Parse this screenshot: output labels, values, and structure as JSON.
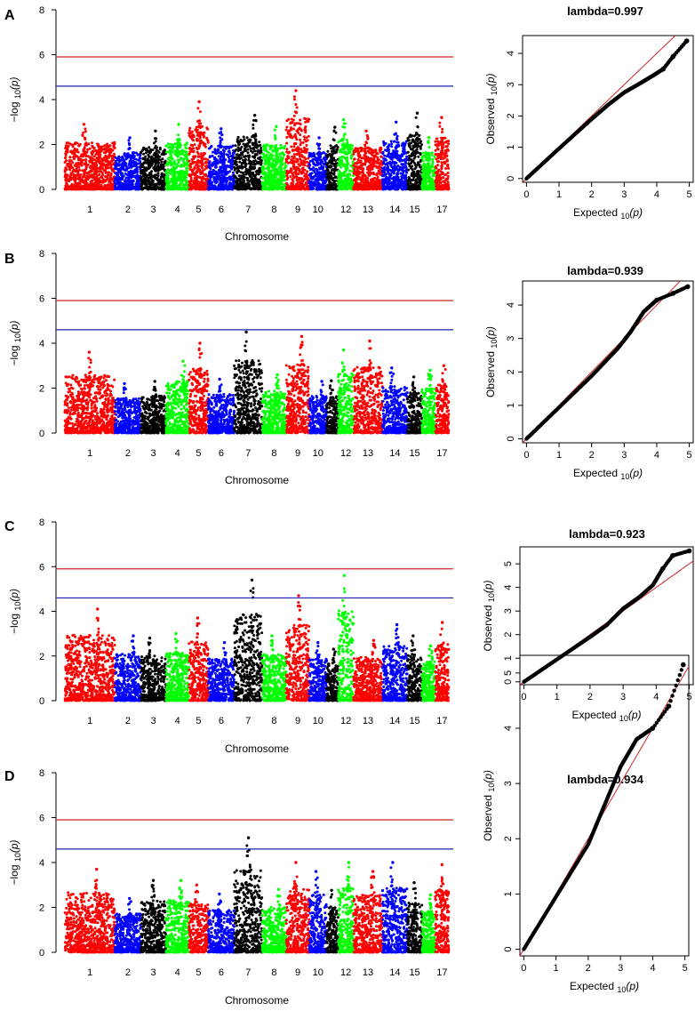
{
  "figure": {
    "chromosome_colors": [
      "#ff0000",
      "#0000ff",
      "#000000",
      "#00ff00"
    ],
    "threshold_colors": {
      "upper": "#cd2626",
      "lower": "#1f1fb0"
    },
    "qq_line_color": "#cd2626"
  },
  "chart_data": [
    {
      "panel": "A",
      "type": "scatter",
      "subtype": "manhattan",
      "xlabel": "Chromosome",
      "ylabel": "−log",
      "ylabel_sub": "10",
      "ylabel_tail": "(p)",
      "ylim": [
        0,
        8
      ],
      "yticks": [
        "0",
        "2",
        "4",
        "6",
        "8"
      ],
      "chromosome_labels": [
        "1",
        "2",
        "3",
        "4",
        "5",
        "6",
        "7",
        "8",
        "9",
        "10",
        "12",
        "13",
        "14",
        "15",
        "17"
      ],
      "thresholds": [
        5.9,
        4.6
      ],
      "peaks": [
        2.9,
        2.3,
        2.6,
        2.9,
        3.9,
        2.7,
        3.3,
        2.8,
        4.4,
        2.3,
        3.1,
        2.6,
        3.0,
        3.4,
        3.2
      ]
    },
    {
      "panel": "A",
      "type": "scatter",
      "subtype": "qq",
      "title": "lambda=0.997",
      "xlabel": "Expected",
      "ylabel": "Observed",
      "axis_sub": "10",
      "axis_tail": "(p)",
      "xlim": [
        0,
        5
      ],
      "ylim": [
        0,
        4.45
      ],
      "xticks": [
        "0",
        "1",
        "2",
        "3",
        "4",
        "5"
      ],
      "yticks": [
        "0",
        "1",
        "2",
        "3",
        "4"
      ],
      "points": [
        [
          0,
          0
        ],
        [
          1,
          0.96
        ],
        [
          2,
          1.9
        ],
        [
          2.5,
          2.35
        ],
        [
          3,
          2.75
        ],
        [
          3.5,
          3.05
        ],
        [
          3.9,
          3.3
        ],
        [
          4.2,
          3.5
        ],
        [
          4.5,
          3.9
        ],
        [
          4.92,
          4.4
        ]
      ]
    },
    {
      "panel": "B",
      "type": "scatter",
      "subtype": "manhattan",
      "xlabel": "Chromosome",
      "ylabel": "−log",
      "ylabel_sub": "10",
      "ylabel_tail": "(p)",
      "ylim": [
        0,
        8
      ],
      "yticks": [
        "0",
        "2",
        "4",
        "6",
        "8"
      ],
      "chromosome_labels": [
        "1",
        "2",
        "3",
        "4",
        "5",
        "6",
        "7",
        "8",
        "9",
        "10",
        "12",
        "13",
        "14",
        "15",
        "17"
      ],
      "thresholds": [
        5.9,
        4.6
      ],
      "peaks": [
        3.6,
        2.2,
        2.3,
        3.2,
        4.0,
        2.4,
        4.5,
        2.6,
        4.3,
        2.3,
        3.7,
        4.1,
        2.9,
        2.5,
        3.0
      ]
    },
    {
      "panel": "B",
      "type": "scatter",
      "subtype": "qq",
      "title": "lambda=0.939",
      "xlabel": "Expected",
      "ylabel": "Observed",
      "axis_sub": "10",
      "axis_tail": "(p)",
      "xlim": [
        0,
        5
      ],
      "ylim": [
        0,
        4.6
      ],
      "xticks": [
        "0",
        "1",
        "2",
        "3",
        "4",
        "5"
      ],
      "yticks": [
        "0",
        "1",
        "2",
        "3",
        "4"
      ],
      "points": [
        [
          0,
          0
        ],
        [
          1,
          0.94
        ],
        [
          2,
          1.88
        ],
        [
          2.8,
          2.7
        ],
        [
          3.2,
          3.2
        ],
        [
          3.6,
          3.8
        ],
        [
          4.0,
          4.15
        ],
        [
          4.5,
          4.35
        ],
        [
          4.95,
          4.55
        ]
      ]
    },
    {
      "panel": "C",
      "type": "scatter",
      "subtype": "manhattan",
      "xlabel": "Chromosome",
      "ylabel": "−log",
      "ylabel_sub": "10",
      "ylabel_tail": "(p)",
      "ylim": [
        0,
        8
      ],
      "yticks": [
        "0",
        "2",
        "4",
        "6",
        "8"
      ],
      "chromosome_labels": [
        "1",
        "2",
        "3",
        "4",
        "5",
        "6",
        "7",
        "8",
        "9",
        "10",
        "12",
        "13",
        "14",
        "15",
        "17"
      ],
      "thresholds": [
        5.9,
        4.6
      ],
      "peaks": [
        4.1,
        2.9,
        2.8,
        3.0,
        3.7,
        2.6,
        5.4,
        2.9,
        4.7,
        2.6,
        5.6,
        2.7,
        3.4,
        2.9,
        3.5
      ]
    },
    {
      "panel": "C",
      "type": "scatter",
      "subtype": "qq",
      "title": "lambda=0.923",
      "xlabel": "Expected",
      "ylabel": "Observed",
      "axis_sub": "10",
      "axis_tail": "(p)",
      "xlim": [
        0,
        5
      ],
      "ylim": [
        0,
        5.6
      ],
      "xticks": [
        "0",
        "1",
        "2",
        "3",
        "4",
        "5"
      ],
      "yticks": [
        "0",
        "1",
        "2",
        "3",
        "4",
        "5"
      ],
      "points": [
        [
          0,
          0
        ],
        [
          1,
          0.95
        ],
        [
          2,
          1.9
        ],
        [
          2.5,
          2.4
        ],
        [
          3,
          3.1
        ],
        [
          3.5,
          3.6
        ],
        [
          3.9,
          4.1
        ],
        [
          4.2,
          4.8
        ],
        [
          4.5,
          5.35
        ],
        [
          5.0,
          5.55
        ]
      ]
    },
    {
      "panel": "D",
      "type": "scatter",
      "subtype": "manhattan",
      "xlabel": "Chromosome",
      "ylabel": "−log",
      "ylabel_sub": "10",
      "ylabel_tail": "(p)",
      "ylim": [
        0,
        8
      ],
      "yticks": [
        "0",
        "2",
        "4",
        "6",
        "8"
      ],
      "chromosome_labels": [
        "1",
        "2",
        "3",
        "4",
        "5",
        "6",
        "7",
        "8",
        "9",
        "10",
        "12",
        "13",
        "14",
        "15",
        "17"
      ],
      "thresholds": [
        5.9,
        4.6
      ],
      "peaks": [
        3.7,
        2.4,
        3.2,
        3.2,
        3.0,
        2.6,
        5.1,
        2.8,
        4.0,
        3.6,
        4.0,
        3.6,
        4.0,
        3.1,
        3.9
      ]
    },
    {
      "panel": "D",
      "type": "scatter",
      "subtype": "qq",
      "title": "lambda=0.934",
      "xlabel": "Expected",
      "ylabel": "Observed",
      "axis_sub": "10",
      "axis_tail": "(p)",
      "xlim": [
        0,
        5
      ],
      "ylim": [
        0,
        5.2
      ],
      "xticks": [
        "0",
        "1",
        "2",
        "3",
        "4",
        "5"
      ],
      "yticks": [
        "0",
        "1",
        "2",
        "3",
        "4",
        "5"
      ],
      "points": [
        [
          0,
          0
        ],
        [
          1,
          0.95
        ],
        [
          2,
          1.9
        ],
        [
          2.5,
          2.6
        ],
        [
          3,
          3.3
        ],
        [
          3.5,
          3.8
        ],
        [
          4.0,
          4.0
        ],
        [
          4.5,
          4.4
        ],
        [
          4.95,
          5.15
        ]
      ]
    }
  ]
}
